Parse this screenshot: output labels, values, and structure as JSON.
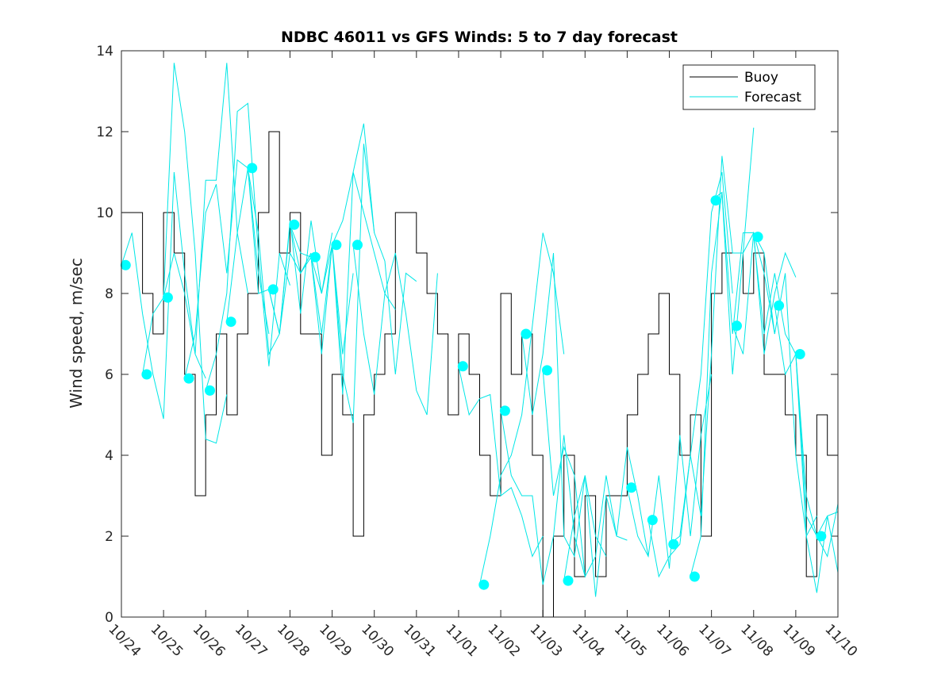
{
  "chart_data": {
    "type": "line",
    "title": "NDBC 46011 vs GFS Winds: 5 to 7 day forecast",
    "xlabel": "",
    "ylabel": "Wind speed, m/sec",
    "ylim": [
      0,
      14
    ],
    "yticks": [
      0,
      2,
      4,
      6,
      8,
      10,
      12,
      14
    ],
    "xlim": [
      0,
      17
    ],
    "xticks": [
      0,
      1,
      2,
      3,
      4,
      5,
      6,
      7,
      8,
      9,
      10,
      11,
      12,
      13,
      14,
      15,
      16,
      17
    ],
    "xticklabels": [
      "10/24",
      "10/25",
      "10/26",
      "10/27",
      "10/28",
      "10/29",
      "10/30",
      "10/31",
      "11/01",
      "11/02",
      "11/03",
      "11/04",
      "11/05",
      "11/06",
      "11/07",
      "11/08",
      "11/09",
      "11/10"
    ],
    "legend": {
      "position": "top-right",
      "entries": [
        "Buoy",
        "Forecast"
      ]
    },
    "colors": {
      "buoy": "#000000",
      "forecast": "#00e6e6",
      "marker": "#00ffff",
      "axes": "#262626"
    },
    "buoy": {
      "name": "Buoy",
      "days": [
        0,
        0.25,
        0.5,
        0.75,
        1.0,
        1.25,
        1.5,
        1.75,
        2.0,
        2.25,
        2.5,
        2.75,
        3.0,
        3.25,
        3.5,
        3.75,
        4.0,
        4.25,
        4.5,
        4.75,
        5.0,
        5.25,
        5.5,
        5.75,
        6.0,
        6.25,
        6.5,
        6.75,
        7.0,
        7.25,
        7.5,
        7.75,
        8.0,
        8.25,
        8.5,
        8.75,
        9.0,
        9.25,
        9.5,
        9.75,
        10.0,
        10.25,
        10.5,
        10.75,
        11.0,
        11.25,
        11.5,
        11.75,
        12.0,
        12.25,
        12.5,
        12.75,
        13.0,
        13.25,
        13.5,
        13.75,
        14.0,
        14.25,
        14.5,
        14.75,
        15.0,
        15.25,
        15.5,
        15.75,
        16.0,
        16.25,
        16.5,
        16.75,
        17.0
      ],
      "values": [
        10,
        10,
        8,
        7,
        10,
        9,
        6,
        3,
        5,
        7,
        5,
        7,
        8,
        10,
        12,
        9,
        10,
        7,
        7,
        4,
        6,
        5,
        2,
        5,
        6,
        7,
        10,
        10,
        9,
        8,
        7,
        5,
        7,
        6,
        4,
        3,
        8,
        6,
        7,
        4,
        0,
        2,
        4,
        1,
        3,
        1,
        3,
        3,
        5,
        6,
        7,
        8,
        6,
        4,
        5,
        2,
        8,
        9,
        9,
        8,
        9,
        6,
        6,
        5,
        4,
        1,
        5,
        4,
        4
      ]
    },
    "forecast": {
      "name": "Forecast",
      "runs": [
        {
          "days": [
            0,
            0.25,
            0.5,
            0.75,
            1.0,
            1.25,
            1.5,
            1.75,
            2.0
          ],
          "values": [
            8.7,
            9.5,
            7.5,
            6.0,
            4.9,
            11.0,
            8.5,
            6.5,
            5.9
          ]
        },
        {
          "days": [
            0.5,
            0.75,
            1.0,
            1.25,
            1.5,
            1.75,
            2.0,
            2.25,
            2.5
          ],
          "values": [
            6.0,
            7.5,
            7.9,
            13.7,
            12.0,
            9.0,
            4.4,
            4.3,
            5.5
          ]
        },
        {
          "days": [
            1.0,
            1.25,
            1.5,
            1.75,
            2.0,
            2.25,
            2.5,
            2.75,
            3.0
          ],
          "values": [
            7.9,
            9.0,
            8.0,
            6.5,
            10.8,
            10.8,
            13.7,
            9.5,
            8.0
          ]
        },
        {
          "days": [
            1.5,
            1.75,
            2.0,
            2.25,
            2.5,
            2.75,
            3.0,
            3.25,
            3.5
          ],
          "values": [
            5.9,
            7.0,
            10.0,
            10.7,
            8.5,
            11.3,
            11.1,
            8.5,
            7.0
          ]
        },
        {
          "days": [
            2.0,
            2.25,
            2.5,
            2.75,
            3.0,
            3.25,
            3.5,
            3.75,
            4.0
          ],
          "values": [
            5.6,
            6.5,
            8.0,
            12.5,
            12.7,
            9.0,
            6.2,
            9.0,
            8.2
          ]
        },
        {
          "days": [
            2.5,
            2.75,
            3.0,
            3.25,
            3.5,
            3.75,
            4.0,
            4.25,
            4.5
          ],
          "values": [
            7.3,
            9.5,
            11.1,
            9.5,
            6.5,
            7.0,
            9.0,
            8.5,
            9.0
          ]
        },
        {
          "days": [
            3.0,
            3.25,
            3.5,
            3.75,
            4.0,
            4.25,
            4.5,
            4.75,
            5.0
          ],
          "values": [
            11.1,
            8.0,
            8.1,
            7.0,
            9.8,
            7.5,
            9.8,
            8.0,
            9.5
          ]
        },
        {
          "days": [
            3.5,
            3.75,
            4.0,
            4.25,
            4.5,
            4.75,
            5.0,
            5.25,
            5.5
          ],
          "values": [
            8.1,
            7.0,
            9.7,
            9.0,
            8.9,
            7.0,
            9.2,
            6.5,
            8.5
          ]
        },
        {
          "days": [
            4.0,
            4.25,
            4.5,
            4.75,
            5.0,
            5.25,
            5.5,
            5.75,
            6.0
          ],
          "values": [
            9.7,
            8.5,
            8.9,
            8.0,
            9.2,
            9.8,
            11.0,
            12.2,
            9.5
          ]
        },
        {
          "days": [
            4.5,
            4.75,
            5.0,
            5.25,
            5.5,
            5.75,
            6.0,
            6.25,
            6.5
          ],
          "values": [
            8.9,
            6.5,
            9.2,
            5.5,
            11.0,
            10.0,
            9.0,
            8.0,
            7.6
          ]
        },
        {
          "days": [
            5.0,
            5.25,
            5.5,
            5.75,
            6.0,
            6.25,
            6.5,
            6.75,
            7.0
          ],
          "values": [
            9.2,
            6.0,
            4.8,
            11.7,
            9.5,
            8.8,
            6.0,
            8.5,
            8.3
          ]
        },
        {
          "days": [
            5.5,
            5.75,
            6.0,
            6.25,
            6.5,
            6.75,
            7.0,
            7.25,
            7.5
          ],
          "values": [
            9.2,
            7.0,
            5.5,
            8.0,
            9.0,
            7.5,
            5.6,
            5.0,
            8.5
          ]
        },
        {
          "days": [
            8.0,
            8.25,
            8.5,
            8.75,
            9.0,
            9.25,
            9.5,
            9.75,
            10.0
          ],
          "values": [
            6.2,
            5.0,
            5.4,
            5.5,
            3.0,
            3.2,
            2.5,
            1.5,
            2.0
          ]
        },
        {
          "days": [
            8.5,
            8.75,
            9.0,
            9.25,
            9.5,
            9.75,
            10.0,
            10.25,
            10.5
          ],
          "values": [
            0.8,
            2.0,
            3.5,
            4.0,
            5.0,
            7.2,
            9.5,
            8.5,
            6.5
          ]
        },
        {
          "days": [
            9.0,
            9.25,
            9.5,
            9.75,
            10.0,
            10.25,
            10.5,
            10.75,
            11.0
          ],
          "values": [
            5.1,
            3.5,
            3.0,
            3.0,
            0.8,
            2.0,
            4.5,
            2.0,
            1.0
          ]
        },
        {
          "days": [
            9.5,
            9.75,
            10.0,
            10.25,
            10.5,
            10.75,
            11.0,
            11.25,
            11.5
          ],
          "values": [
            7.0,
            5.0,
            6.5,
            9.0,
            2.0,
            1.5,
            3.5,
            2.0,
            1.5
          ]
        },
        {
          "days": [
            10.0,
            10.25,
            10.5,
            10.75,
            11.0,
            11.25,
            11.5,
            11.75,
            12.0
          ],
          "values": [
            6.1,
            3.0,
            4.2,
            3.5,
            1.0,
            1.5,
            3.5,
            2.0,
            1.9
          ]
        },
        {
          "days": [
            10.5,
            10.75,
            11.0,
            11.25,
            11.5,
            11.75,
            12.0,
            12.25,
            12.5
          ],
          "values": [
            0.9,
            2.5,
            3.5,
            0.5,
            3.0,
            2.0,
            4.2,
            3.0,
            1.5
          ]
        },
        {
          "days": [
            12.0,
            12.25,
            12.5,
            12.75,
            13.0,
            13.25,
            13.5,
            13.75,
            14.0
          ],
          "values": [
            3.2,
            2.0,
            1.5,
            3.5,
            1.2,
            4.5,
            2.0,
            4.5,
            6.0
          ]
        },
        {
          "days": [
            12.5,
            12.75,
            13.0,
            13.25,
            13.5,
            13.75,
            14.0,
            14.25,
            14.5
          ],
          "values": [
            2.4,
            1.0,
            1.5,
            1.8,
            4.0,
            6.0,
            10.0,
            11.0,
            8.0
          ]
        },
        {
          "days": [
            13.0,
            13.25,
            13.5,
            13.75,
            14.0,
            14.25,
            14.5,
            14.75,
            15.0
          ],
          "values": [
            1.8,
            2.0,
            4.0,
            2.5,
            6.5,
            11.4,
            9.0,
            9.0,
            12.1
          ]
        },
        {
          "days": [
            13.5,
            13.75,
            14.0,
            14.25,
            14.5,
            14.75,
            15.0,
            15.25,
            15.5
          ],
          "values": [
            1.0,
            2.0,
            8.5,
            10.5,
            6.0,
            9.0,
            9.5,
            8.5,
            7.0
          ]
        },
        {
          "days": [
            14.0,
            14.25,
            14.5,
            14.75,
            15.0,
            15.25,
            15.5,
            15.75,
            16.0
          ],
          "values": [
            10.3,
            10.5,
            7.0,
            9.5,
            9.5,
            6.5,
            8.0,
            9.0,
            8.4
          ]
        },
        {
          "days": [
            14.5,
            14.75,
            15.0,
            15.25,
            15.5,
            15.75,
            16.0,
            16.25,
            16.5
          ],
          "values": [
            7.2,
            6.5,
            9.5,
            9.0,
            7.0,
            8.5,
            4.0,
            2.0,
            2.5
          ]
        },
        {
          "days": [
            15.0,
            15.25,
            15.5,
            15.75,
            16.0,
            16.25,
            16.5,
            16.75,
            17.0
          ],
          "values": [
            9.4,
            7.0,
            8.5,
            7.0,
            6.5,
            2.5,
            2.0,
            1.5,
            2.8
          ]
        },
        {
          "days": [
            15.5,
            15.75,
            16.0,
            16.25,
            16.5,
            16.75,
            17.0
          ],
          "values": [
            7.7,
            6.0,
            6.5,
            2.0,
            0.6,
            2.5,
            1.1
          ]
        },
        {
          "days": [
            16.0,
            16.25,
            16.5,
            16.75,
            17.0
          ],
          "values": [
            6.5,
            3.0,
            2.0,
            2.5,
            2.6
          ]
        }
      ],
      "markers": [
        {
          "day": 0.1,
          "value": 8.7
        },
        {
          "day": 0.6,
          "value": 6.0
        },
        {
          "day": 1.1,
          "value": 7.9
        },
        {
          "day": 1.6,
          "value": 5.9
        },
        {
          "day": 2.1,
          "value": 5.6
        },
        {
          "day": 2.6,
          "value": 7.3
        },
        {
          "day": 3.1,
          "value": 11.1
        },
        {
          "day": 3.6,
          "value": 8.1
        },
        {
          "day": 4.1,
          "value": 9.7
        },
        {
          "day": 4.6,
          "value": 8.9
        },
        {
          "day": 5.1,
          "value": 9.2
        },
        {
          "day": 5.6,
          "value": 9.2
        },
        {
          "day": 8.1,
          "value": 6.2
        },
        {
          "day": 8.6,
          "value": 0.8
        },
        {
          "day": 9.1,
          "value": 5.1
        },
        {
          "day": 9.6,
          "value": 7.0
        },
        {
          "day": 10.1,
          "value": 6.1
        },
        {
          "day": 10.6,
          "value": 0.9
        },
        {
          "day": 12.1,
          "value": 3.2
        },
        {
          "day": 12.6,
          "value": 2.4
        },
        {
          "day": 13.1,
          "value": 1.8
        },
        {
          "day": 13.6,
          "value": 1.0
        },
        {
          "day": 14.1,
          "value": 10.3
        },
        {
          "day": 14.6,
          "value": 7.2
        },
        {
          "day": 15.1,
          "value": 9.4
        },
        {
          "day": 15.6,
          "value": 7.7
        },
        {
          "day": 16.1,
          "value": 6.5
        },
        {
          "day": 16.6,
          "value": 2.0
        }
      ]
    }
  }
}
